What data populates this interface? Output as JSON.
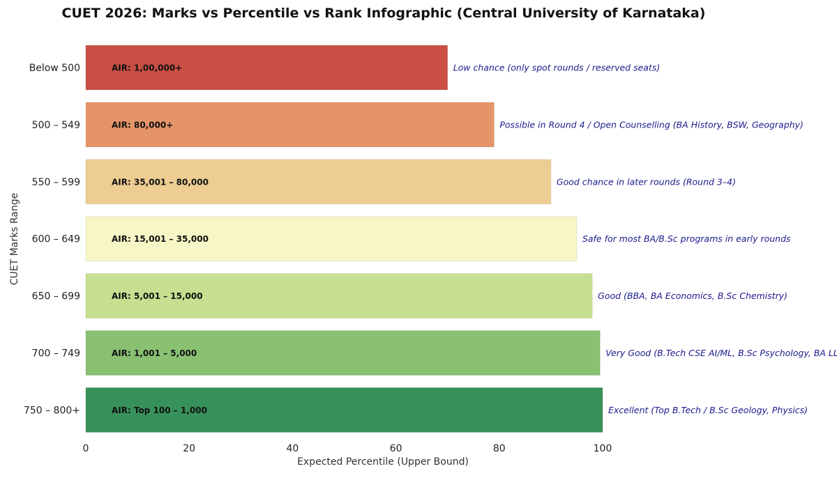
{
  "chart_data": {
    "type": "bar",
    "orientation": "horizontal",
    "title": "CUET 2026: Marks vs Percentile vs Rank Infographic (Central University of Karnataka)",
    "xlabel": "Expected Percentile (Upper Bound)",
    "ylabel": "CUET Marks Range",
    "xlim": [
      0,
      100
    ],
    "xticks": [
      0,
      20,
      40,
      60,
      80,
      100
    ],
    "grid": false,
    "categories": [
      "Below 500",
      "500 – 549",
      "550 – 599",
      "600 – 649",
      "650 – 699",
      "700 – 749",
      "750 – 800+"
    ],
    "values": [
      70,
      79,
      90,
      95,
      98,
      99.5,
      100
    ],
    "colors": [
      "#c94f45",
      "#e59468",
      "#eecd92",
      "#f7f6c6",
      "#c8df91",
      "#89c072",
      "#37915a"
    ],
    "air_labels": [
      "AIR: 1,00,000+",
      "AIR: 80,000+",
      "AIR: 35,001 – 80,000",
      "AIR: 15,001 – 35,000",
      "AIR: 5,001 – 15,000",
      "AIR: 1,001 – 5,000",
      "AIR: Top 100 – 1,000"
    ],
    "annotations": [
      "Low chance (only spot rounds / reserved seats)",
      "Possible in Round 4 / Open Counselling (BA History, BSW, Geography)",
      "Good chance in later rounds (Round 3–4)",
      "Safe for most BA/B.Sc programs in early rounds",
      "Good (BBA, BA Economics, B.Sc Chemistry)",
      "Very Good (B.Tech CSE AI/ML, B.Sc Psychology, BA LLB)",
      "Excellent (Top B.Tech / B.Sc Geology, Physics)"
    ]
  }
}
